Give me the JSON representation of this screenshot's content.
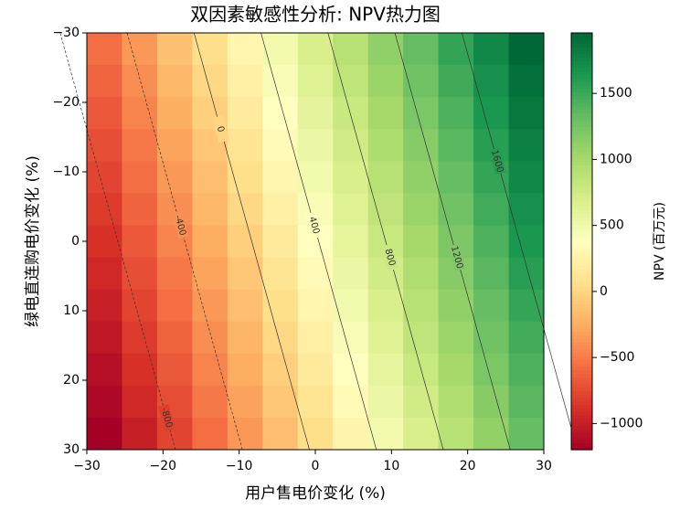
{
  "chart_data": {
    "type": "heatmap",
    "title": "双因素敏感性分析: NPV热力图",
    "x_label": "用户售电价变化 (%)",
    "y_label": "绿电直连购电价变化 (%)",
    "colorbar_label": "NPV (百万元)",
    "colormap": "RdYlGn",
    "xlim": [
      -30,
      30
    ],
    "ylim": [
      30,
      -30
    ],
    "xticks": [
      {
        "value": -30,
        "label": "−30"
      },
      {
        "value": -20,
        "label": "−20"
      },
      {
        "value": -10,
        "label": "−10"
      },
      0,
      10,
      20,
      30
    ],
    "yticks": [
      {
        "value": -30,
        "label": "−30"
      },
      {
        "value": -20,
        "label": "−20"
      },
      {
        "value": -10,
        "label": "−10"
      },
      0,
      10,
      20,
      30
    ],
    "colorbar_ticks": [
      {
        "value": -1000,
        "label": "−1000"
      },
      {
        "value": -500,
        "label": "−500"
      },
      0,
      500,
      1000,
      1500
    ],
    "contour_levels": [
      -800,
      -400,
      0,
      400,
      800,
      1200,
      1600
    ],
    "z": [
      [
        -562,
        -352,
        -142,
        68,
        278,
        488,
        698,
        908,
        1118,
        1328,
        1538,
        1748,
        1958
      ],
      [
        -615,
        -405,
        -195,
        15,
        225,
        435,
        645,
        855,
        1065,
        1275,
        1485,
        1695,
        1905
      ],
      [
        -668,
        -458,
        -248,
        -38,
        172,
        382,
        592,
        802,
        1012,
        1222,
        1432,
        1642,
        1852
      ],
      [
        -721,
        -511,
        -301,
        -91,
        119,
        329,
        539,
        749,
        959,
        1169,
        1379,
        1589,
        1799
      ],
      [
        -774,
        -564,
        -354,
        -144,
        66,
        276,
        486,
        696,
        906,
        1116,
        1326,
        1536,
        1746
      ],
      [
        -827,
        -617,
        -407,
        -197,
        13,
        223,
        433,
        643,
        853,
        1063,
        1273,
        1483,
        1693
      ],
      [
        -880,
        -670,
        -460,
        -250,
        -40,
        170,
        380,
        590,
        800,
        1010,
        1220,
        1430,
        1640
      ],
      [
        -933,
        -723,
        -513,
        -303,
        -93,
        117,
        327,
        537,
        747,
        957,
        1167,
        1377,
        1587
      ],
      [
        -986,
        -776,
        -566,
        -356,
        -146,
        64,
        274,
        484,
        694,
        904,
        1114,
        1324,
        1534
      ],
      [
        -1039,
        -829,
        -619,
        -409,
        -199,
        11,
        221,
        431,
        641,
        851,
        1061,
        1271,
        1481
      ],
      [
        -1092,
        -882,
        -672,
        -462,
        -252,
        -42,
        168,
        378,
        588,
        798,
        1008,
        1218,
        1428
      ],
      [
        -1145,
        -935,
        -725,
        -515,
        -305,
        -95,
        115,
        325,
        535,
        745,
        955,
        1165,
        1375
      ],
      [
        -1198,
        -988,
        -778,
        -568,
        -358,
        -148,
        62,
        272,
        482,
        692,
        902,
        1112,
        1322
      ]
    ]
  }
}
